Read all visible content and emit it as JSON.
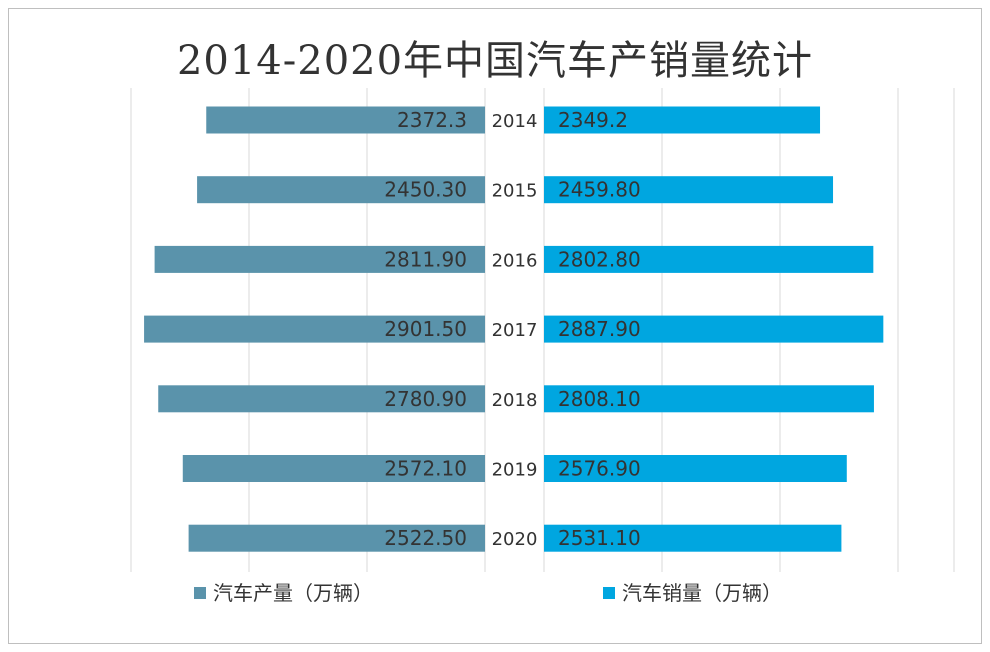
{
  "colors": {
    "production": "#5a93ab",
    "sales": "#00a6e0",
    "grid": "#d9d9d9",
    "text": "#333333"
  },
  "chart_data": {
    "type": "bar",
    "orientation": "horizontal-butterfly",
    "title": "2014-2020年中国汽车产销量统计",
    "categories": [
      "2014",
      "2015",
      "2016",
      "2017",
      "2018",
      "2019",
      "2020"
    ],
    "series": [
      {
        "name": "汽车产量（万辆）",
        "values": [
          2372.3,
          2450.3,
          2811.9,
          2901.5,
          2780.9,
          2572.1,
          2522.5
        ],
        "labels": [
          "2372.3",
          "2450.30",
          "2811.90",
          "2901.50",
          "2780.90",
          "2572.10",
          "2522.50"
        ]
      },
      {
        "name": "汽车销量（万辆）",
        "values": [
          2349.2,
          2459.8,
          2802.8,
          2887.9,
          2808.1,
          2576.9,
          2531.1
        ],
        "labels": [
          "2349.2",
          "2459.80",
          "2802.80",
          "2887.90",
          "2808.10",
          "2576.90",
          "2531.10"
        ]
      }
    ],
    "legend": "bottom",
    "grid": true
  }
}
